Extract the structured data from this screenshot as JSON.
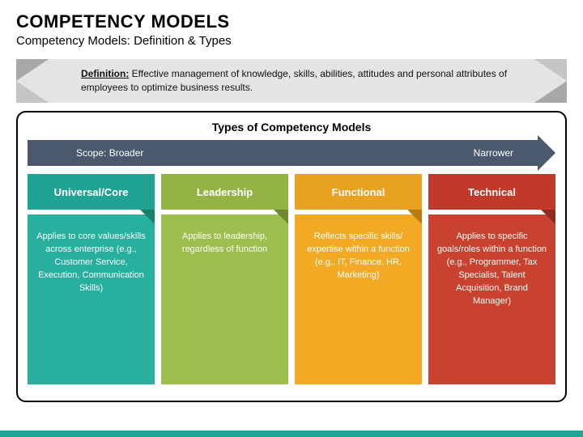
{
  "title": "COMPETENCY MODELS",
  "subtitle": "Competency Models: Definition & Types",
  "definition": {
    "label": "Definition:",
    "text": "Effective management of knowledge, skills, abilities, attitudes and personal attributes of employees to optimize business results.",
    "banner_bg": "#e4e4e4"
  },
  "panel": {
    "title": "Types of Competency Models",
    "scope_bar": {
      "left_label": "Scope: Broader",
      "right_label": "Narrower",
      "color": "#4a5a6c"
    },
    "cards": [
      {
        "title": "Universal/Core",
        "body": "Applies to core values/skills across enterprise\n(e.g., Customer Service, Execution, Communication Skills)",
        "head_color": "#1fa392",
        "body_color": "#26b09d",
        "fold_color": "#17806f"
      },
      {
        "title": "Leadership",
        "body": "Applies to leadership, regardless of function",
        "head_color": "#93b444",
        "body_color": "#9dbf4e",
        "fold_color": "#6f8a30"
      },
      {
        "title": "Functional",
        "body": "Reflects specific skills/ expertise within a function (e.g., IT, Finance, HR, Marketing)",
        "head_color": "#e9a21f",
        "body_color": "#f2aa24",
        "fold_color": "#b87c10"
      },
      {
        "title": "Technical",
        "body": "Applies to specific goals/roles within a function (e.g., Programmer, Tax Specialist, Talent Acquisition, Brand Manager)",
        "head_color": "#c0392b",
        "body_color": "#c9422f",
        "fold_color": "#8f2a1f"
      }
    ]
  },
  "footer_color": "#1aa998"
}
